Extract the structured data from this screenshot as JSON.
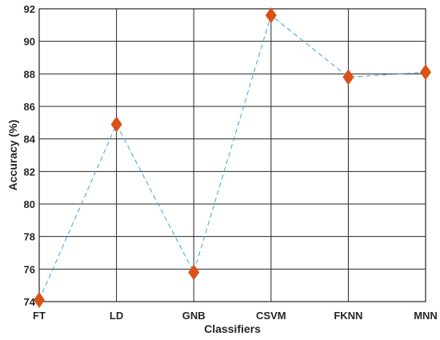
{
  "chart_data": {
    "type": "line",
    "categories": [
      "FT",
      "LD",
      "GNB",
      "CSVM",
      "FKNN",
      "MNN"
    ],
    "series": [
      {
        "values": [
          74.1,
          84.9,
          75.8,
          91.6,
          87.8,
          88.1
        ]
      }
    ],
    "title": "",
    "xlabel": "Classifiers",
    "ylabel": "Accuracy (%)",
    "ylim": [
      74,
      92
    ],
    "yticks": [
      74,
      76,
      78,
      80,
      82,
      84,
      86,
      88,
      90,
      92
    ],
    "grid": true,
    "marker": "diamond",
    "line_style": "dashed",
    "line_color": "#3da4dc",
    "marker_color": "#d95319"
  }
}
